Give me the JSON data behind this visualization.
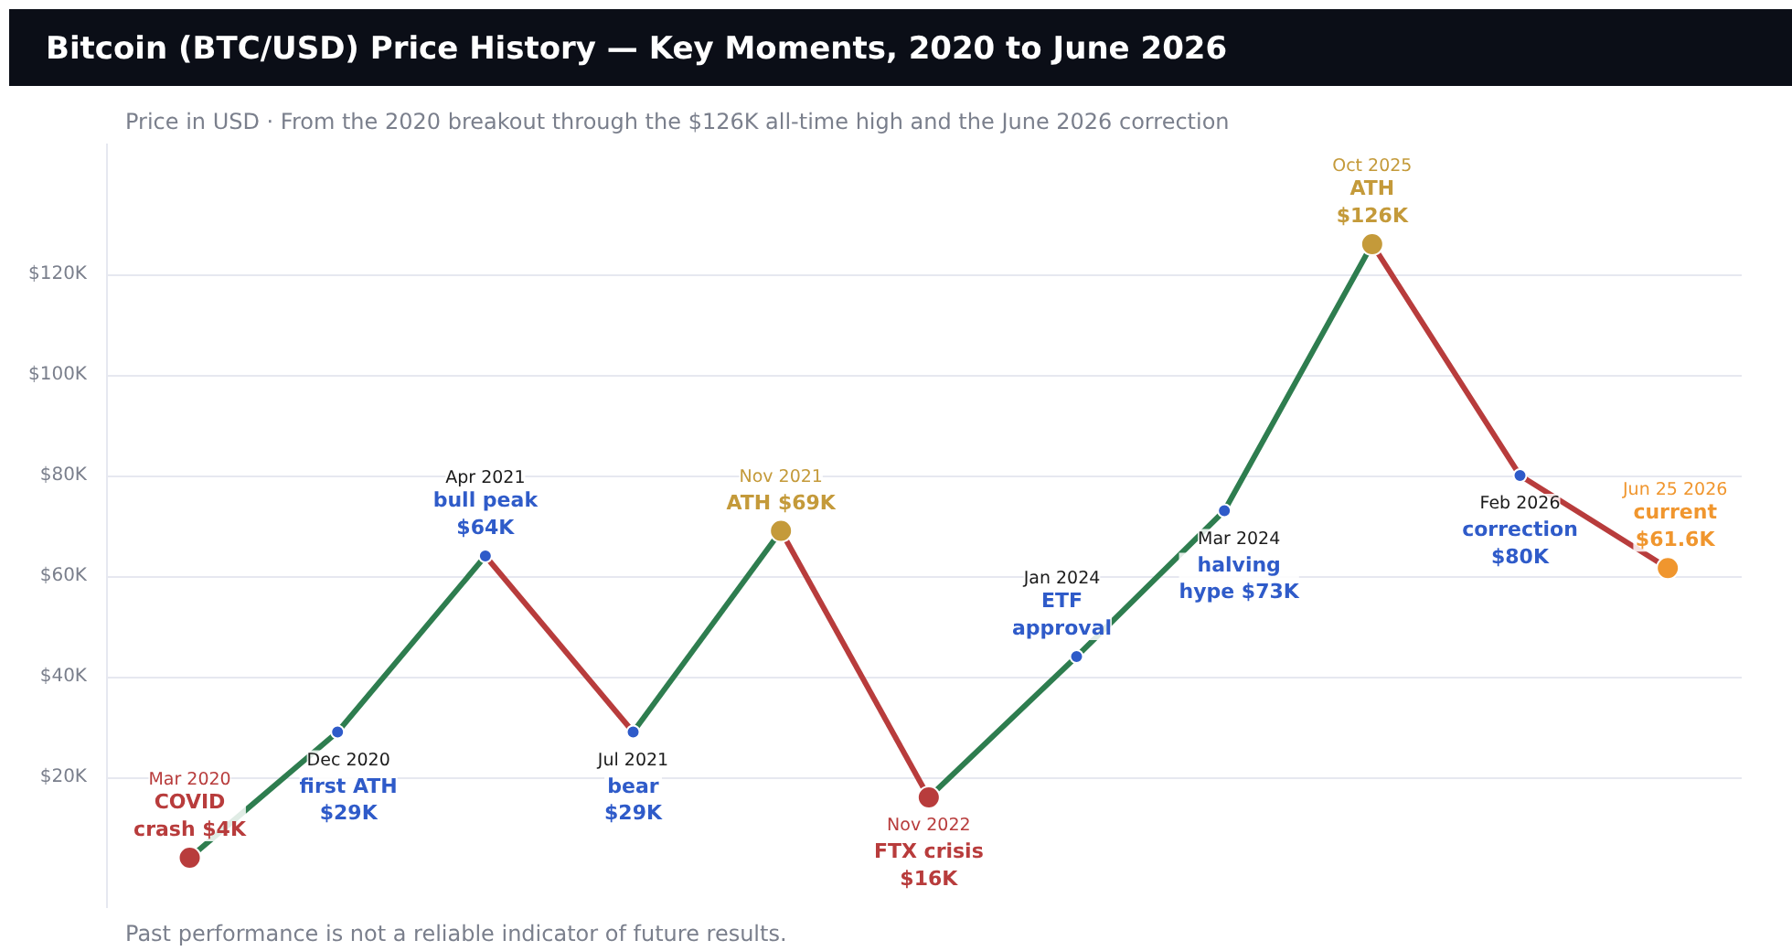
{
  "chart_data": {
    "type": "line",
    "title": "Bitcoin (BTC/USD) Price History — Key Moments, 2020 to June 2026",
    "subtitle": "Price in USD · From the 2020 breakout through the $126K all-time high and the June 2026 correction",
    "annotations": [
      "Past performance is not a reliable indicator of future results."
    ],
    "categories": [
      "Mar 2020",
      "Dec 2020",
      "Apr 2021",
      "Jul 2021",
      "Nov 2021",
      "Nov 2022",
      "Jan 2024",
      "Mar 2024",
      "Oct 2025",
      "Feb 2026",
      "Jun 25 2026"
    ],
    "ylim": [
      -6,
      146
    ],
    "yticks": [
      {
        "value": 20,
        "label": "$20K"
      },
      {
        "value": 40,
        "label": "$40K"
      },
      {
        "value": 60,
        "label": "$60K"
      },
      {
        "value": 80,
        "label": "$80K"
      },
      {
        "value": 100,
        "label": "$100K"
      },
      {
        "value": 120,
        "label": "$120K"
      }
    ],
    "grid": "y",
    "line_style": "solid",
    "series": [
      {
        "color": "#2e7d4f",
        "values": [
          4,
          29,
          64,
          null,
          null,
          null,
          null,
          null,
          null,
          null,
          null
        ]
      },
      {
        "color": "#b83c3c",
        "values": [
          null,
          null,
          64,
          29,
          null,
          null,
          null,
          null,
          null,
          null,
          null
        ]
      },
      {
        "color": "#2e7d4f",
        "values": [
          null,
          null,
          null,
          29,
          69,
          null,
          null,
          null,
          null,
          null,
          null
        ]
      },
      {
        "color": "#b83c3c",
        "values": [
          null,
          null,
          null,
          null,
          69,
          16,
          null,
          null,
          null,
          null,
          null
        ]
      },
      {
        "color": "#2e7d4f",
        "values": [
          null,
          null,
          null,
          null,
          null,
          16,
          44,
          73,
          126,
          null,
          null
        ]
      },
      {
        "color": "#b83c3c",
        "values": [
          null,
          null,
          null,
          null,
          null,
          null,
          null,
          null,
          126,
          80,
          61.6
        ]
      },
      {
        "type": "scatter",
        "marker": "circle",
        "color": "#2f5bc9",
        "values": [
          null,
          29,
          64,
          29,
          null,
          null,
          44,
          73,
          null,
          80,
          null
        ],
        "value_labels": [
          null,
          "first ATH\n$29K",
          "bull peak\n$64K",
          "bear\n$29K",
          null,
          null,
          "ETF\napproval",
          "halving\nhype $73K",
          null,
          "correction\n$80K",
          null
        ]
      },
      {
        "type": "scatter",
        "marker": "circle",
        "colors": [
          "#b83c3c",
          null,
          null,
          null,
          "#c49a3a",
          "#b83c3c",
          null,
          null,
          "#c49a3a",
          null,
          "#f0962e"
        ],
        "values": [
          4,
          null,
          null,
          null,
          69,
          16,
          null,
          null,
          126,
          null,
          61.6
        ],
        "value_labels": [
          "COVID\ncrash $4K",
          null,
          null,
          null,
          "ATH $69K",
          "FTX crisis\n$16K",
          null,
          null,
          "ATH\n$126K",
          null,
          "current\n$61.6K"
        ]
      }
    ]
  }
}
